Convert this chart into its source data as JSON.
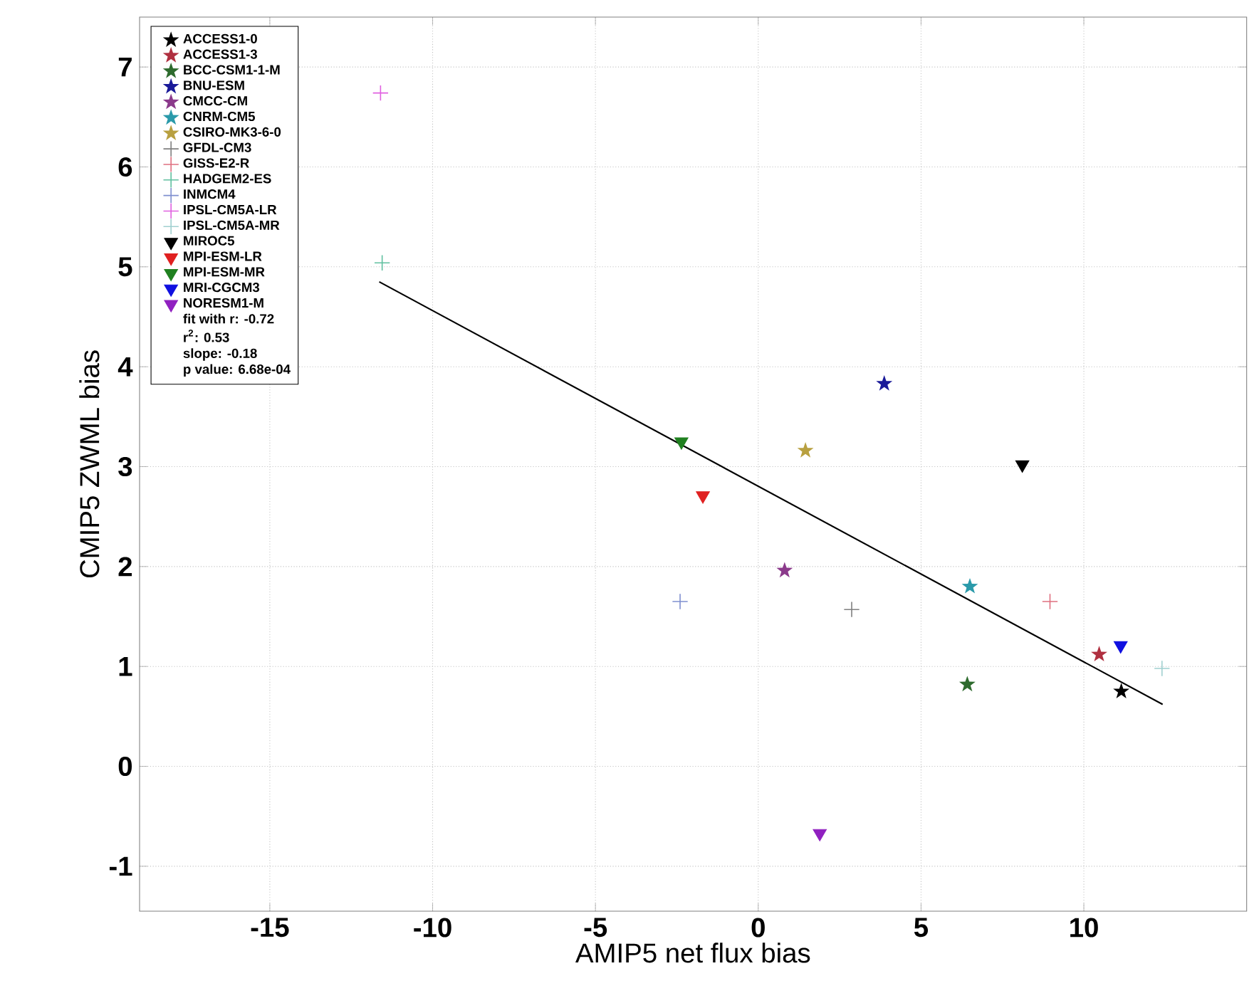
{
  "chart_data": {
    "type": "scatter",
    "xlabel": "AMIP5 net flux bias",
    "ylabel": "CMIP5 ZWML bias",
    "xlim": [
      -19,
      15
    ],
    "ylim": [
      -1.45,
      7.5
    ],
    "xticks": [
      -15,
      -10,
      -5,
      0,
      5,
      10
    ],
    "yticks": [
      -1,
      0,
      1,
      2,
      3,
      4,
      5,
      6,
      7
    ],
    "grid": true,
    "legend": "top left",
    "series": [
      {
        "name": "ACCESS1-0",
        "color": "#000000",
        "marker": "star",
        "x": [
          11.15
        ],
        "values": [
          0.75
        ]
      },
      {
        "name": "ACCESS1-3",
        "color": "#b03040",
        "marker": "star",
        "x": [
          10.47
        ],
        "values": [
          1.12
        ]
      },
      {
        "name": "BCC-CSM1-1-M",
        "color": "#2e6b2e",
        "marker": "star",
        "x": [
          6.42
        ],
        "values": [
          0.82
        ]
      },
      {
        "name": "BNU-ESM",
        "color": "#1a1a99",
        "marker": "star",
        "x": [
          3.87
        ],
        "values": [
          3.83
        ]
      },
      {
        "name": "CMCC-CM",
        "color": "#8b3a8b",
        "marker": "star",
        "x": [
          0.81
        ],
        "values": [
          1.96
        ]
      },
      {
        "name": "CNRM-CM5",
        "color": "#2a9aaa",
        "marker": "star",
        "x": [
          6.5
        ],
        "values": [
          1.8
        ]
      },
      {
        "name": "CSIRO-MK3-6-0",
        "color": "#b8a040",
        "marker": "star",
        "x": [
          1.45
        ],
        "values": [
          3.16
        ]
      },
      {
        "name": "GFDL-CM3",
        "color": "#808080",
        "marker": "cross",
        "x": [
          2.87
        ],
        "values": [
          1.57
        ]
      },
      {
        "name": "GISS-E2-R",
        "color": "#e07080",
        "marker": "cross",
        "x": [
          8.96
        ],
        "values": [
          1.65
        ]
      },
      {
        "name": "HADGEM2-ES",
        "color": "#60c0a0",
        "marker": "cross",
        "x": [
          -11.55
        ],
        "values": [
          5.04
        ]
      },
      {
        "name": "INMCM4",
        "color": "#8090d0",
        "marker": "cross",
        "x": [
          -2.4
        ],
        "values": [
          1.65
        ]
      },
      {
        "name": "IPSL-CM5A-LR",
        "color": "#e060e0",
        "marker": "cross",
        "x": [
          -11.6
        ],
        "values": [
          6.74
        ]
      },
      {
        "name": "IPSL-CM5A-MR",
        "color": "#a0d0d0",
        "marker": "cross",
        "x": [
          12.4
        ],
        "values": [
          0.98
        ]
      },
      {
        "name": "MIROC5",
        "color": "#000000",
        "marker": "triangle",
        "x": [
          8.11
        ],
        "values": [
          3.02
        ]
      },
      {
        "name": "MPI-ESM-LR",
        "color": "#e02020",
        "marker": "triangle",
        "x": [
          -1.7
        ],
        "values": [
          2.71
        ]
      },
      {
        "name": "MPI-ESM-MR",
        "color": "#208020",
        "marker": "triangle",
        "x": [
          -2.36
        ],
        "values": [
          3.25
        ]
      },
      {
        "name": "MRI-CGCM3",
        "color": "#1010e0",
        "marker": "triangle",
        "x": [
          11.13
        ],
        "values": [
          1.21
        ]
      },
      {
        "name": "NORESM1-M",
        "color": "#9020c0",
        "marker": "triangle",
        "x": [
          1.89
        ],
        "values": [
          -0.67
        ]
      },
      {
        "type": "line",
        "color": "#000000",
        "marker": "none",
        "x": [
          -11.64,
          12.42
        ],
        "values": [
          4.85,
          0.62
        ]
      }
    ],
    "annotations": [
      "fit with r: -0.72",
      "r$^{2}$: 0.53",
      "slope: -0.18",
      "p value: 6.68e-04"
    ]
  }
}
